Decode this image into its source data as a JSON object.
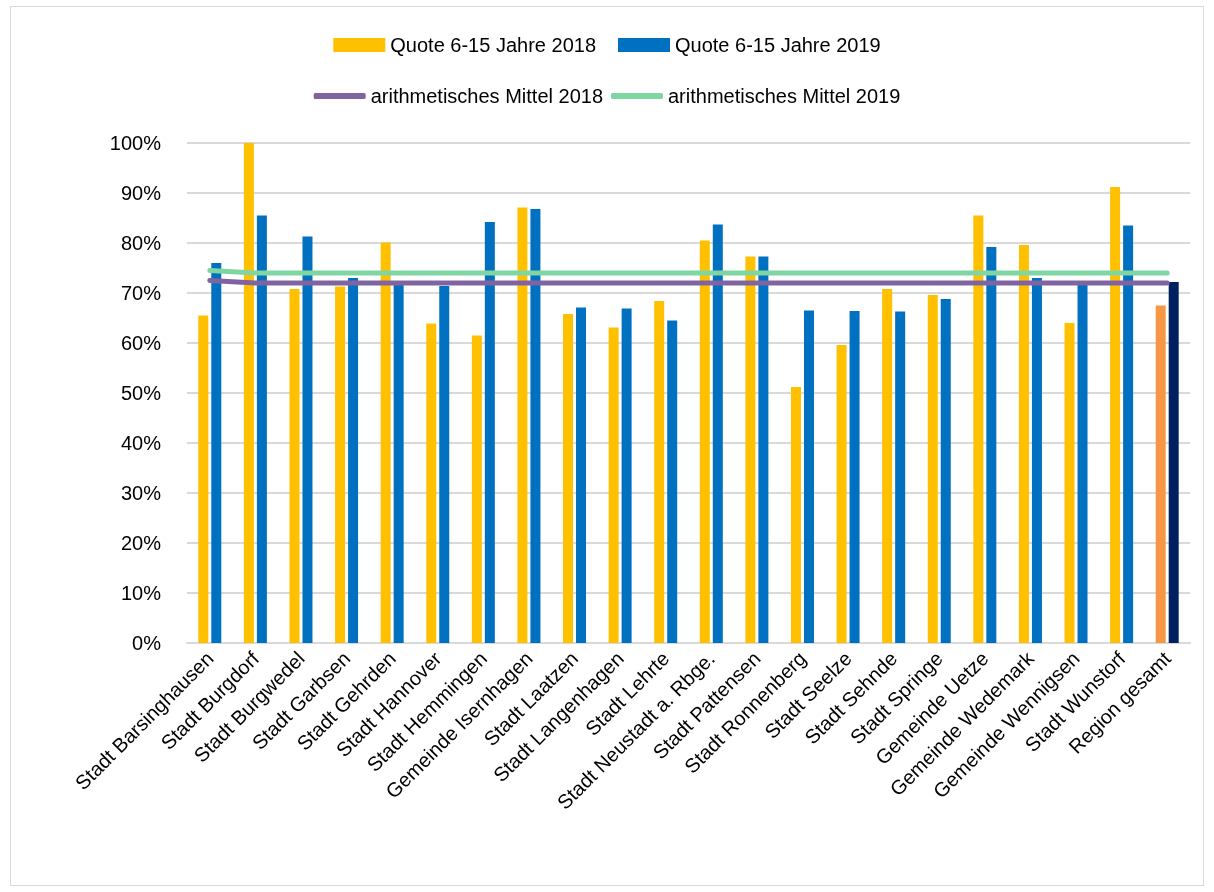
{
  "chart_data": {
    "type": "bar",
    "categories": [
      "Stadt Barsinghausen",
      "Stadt Burgdorf",
      "Stadt Burgwedel",
      "Stadt Garbsen",
      "Stadt Gehrden",
      "Stadt Hannover",
      "Stadt Hemmingen",
      "Gemeinde Isernhagen",
      "Stadt Laatzen",
      "Stadt Langenhagen",
      "Stadt Lehrte",
      "Stadt Neustadt a. Rbge.",
      "Stadt Pattensen",
      "Stadt Ronnenberg",
      "Stadt Seelze",
      "Stadt Sehnde",
      "Stadt Springe",
      "Gemeinde Uetze",
      "Gemeinde Wedemark",
      "Gemeinde Wennigsen",
      "Stadt Wunstorf",
      "Region gesamt"
    ],
    "series": [
      {
        "name": "Quote 6-15 Jahre 2018",
        "color": "#ffc000",
        "colors": [
          "#ffc000",
          "#ffc000",
          "#ffc000",
          "#ffc000",
          "#ffc000",
          "#ffc000",
          "#ffc000",
          "#ffc000",
          "#ffc000",
          "#ffc000",
          "#ffc000",
          "#ffc000",
          "#ffc000",
          "#ffc000",
          "#ffc000",
          "#ffc000",
          "#ffc000",
          "#ffc000",
          "#ffc000",
          "#ffc000",
          "#ffc000",
          "#f79646"
        ],
        "values": [
          65.5,
          100,
          70.8,
          71.3,
          80.1,
          63.9,
          61.5,
          87.1,
          65.8,
          63.1,
          68.4,
          80.5,
          77.3,
          51.2,
          59.6,
          70.8,
          69.6,
          85.5,
          79.6,
          64.0,
          91.2,
          67.5
        ]
      },
      {
        "name": "Quote 6-15 Jahre 2019",
        "color": "#0070c0",
        "colors": [
          "#0070c0",
          "#0070c0",
          "#0070c0",
          "#0070c0",
          "#0070c0",
          "#0070c0",
          "#0070c0",
          "#0070c0",
          "#0070c0",
          "#0070c0",
          "#0070c0",
          "#0070c0",
          "#0070c0",
          "#0070c0",
          "#0070c0",
          "#0070c0",
          "#0070c0",
          "#0070c0",
          "#0070c0",
          "#0070c0",
          "#0070c0",
          "#002060"
        ],
        "values": [
          76.0,
          85.5,
          81.3,
          73.0,
          72.0,
          71.4,
          84.2,
          86.8,
          67.1,
          66.9,
          64.5,
          83.7,
          77.3,
          66.5,
          66.4,
          66.3,
          68.8,
          79.2,
          73.0,
          72.0,
          83.5,
          72.2
        ]
      },
      {
        "name": "arithmetisches Mittel 2018",
        "type": "line",
        "color": "#8064a2",
        "values": [
          72.5,
          72.0,
          72.0,
          72.0,
          72.0,
          72.0,
          72.0,
          72.0,
          72.0,
          72.0,
          72.0,
          72.0,
          72.0,
          72.0,
          72.0,
          72.0,
          72.0,
          72.0,
          72.0,
          72.0,
          72.0,
          72.0
        ]
      },
      {
        "name": "arithmetisches Mittel 2019",
        "type": "line",
        "color": "#80d6a2",
        "values": [
          74.5,
          74.0,
          74.0,
          74.0,
          74.0,
          74.0,
          74.0,
          74.0,
          74.0,
          74.0,
          74.0,
          74.0,
          74.0,
          74.0,
          74.0,
          74.0,
          74.0,
          74.0,
          74.0,
          74.0,
          74.0,
          74.0
        ]
      }
    ],
    "ylim": [
      0,
      100
    ],
    "yticks": [
      {
        "value": 0,
        "label": "0%"
      },
      {
        "value": 10,
        "label": "10%"
      },
      {
        "value": 20,
        "label": "20%"
      },
      {
        "value": 30,
        "label": "30%"
      },
      {
        "value": 40,
        "label": "40%"
      },
      {
        "value": 50,
        "label": "50%"
      },
      {
        "value": 60,
        "label": "60%"
      },
      {
        "value": 70,
        "label": "70%"
      },
      {
        "value": 80,
        "label": "80%"
      },
      {
        "value": 90,
        "label": "90%"
      },
      {
        "value": 100,
        "label": "100%"
      }
    ],
    "grid": "y",
    "legend": "top",
    "marker": "none",
    "line_style": "solid"
  }
}
